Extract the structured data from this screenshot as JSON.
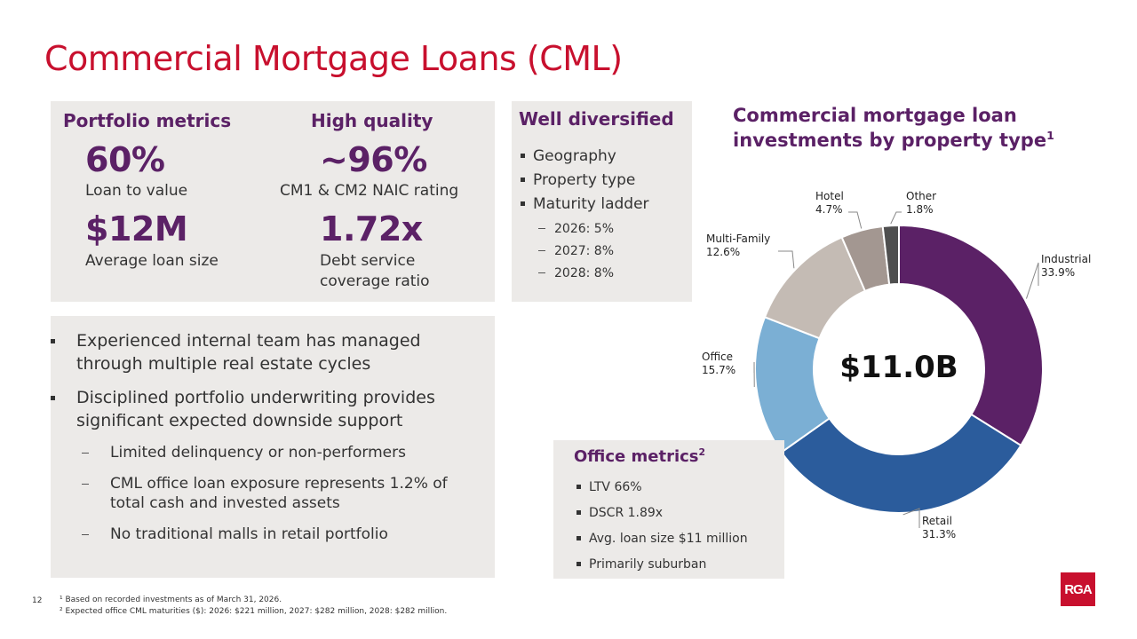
{
  "title": "Commercial Mortgage Loans (CML)",
  "portfolio": {
    "heading": "Portfolio metrics",
    "ltv_value": "60%",
    "ltv_label": "Loan to value",
    "size_value": "$12M",
    "size_label": "Average loan size"
  },
  "quality": {
    "heading": "High quality",
    "rating_value": "~96%",
    "rating_label": "CM1 & CM2 NAIC rating",
    "dscr_value": "1.72x",
    "dscr_label_1": "Debt service",
    "dscr_label_2": "coverage ratio"
  },
  "diversified": {
    "heading": "Well diversified",
    "items": [
      "Geography",
      "Property type",
      "Maturity ladder"
    ],
    "ladder": [
      "2026: 5%",
      "2027: 8%",
      "2028: 8%"
    ]
  },
  "bullets": [
    {
      "text": "Experienced internal team has managed through multiple real estate cycles"
    },
    {
      "text": "Disciplined portfolio underwriting provides significant expected downside support"
    }
  ],
  "sub_bullets": [
    {
      "text": "Limited delinquency or non-performers"
    },
    {
      "text": "CML office loan exposure represents 1.2% of total cash and invested assets"
    },
    {
      "text": "No traditional malls in retail portfolio"
    }
  ],
  "office": {
    "heading": "Office metrics",
    "heading_sup": "2",
    "items": [
      "LTV 66%",
      "DSCR 1.89x",
      "Avg. loan size $11 million",
      "Primarily suburban"
    ]
  },
  "chart_title": {
    "line1": "Commercial mortgage loan",
    "line2": "investments by property type",
    "sup": "1"
  },
  "chart_data": {
    "type": "pie",
    "donut": true,
    "center_label": "$11.0B",
    "slices": [
      {
        "label": "Industrial",
        "value": 33.9,
        "value_label": "33.9%",
        "color": "#5b2166"
      },
      {
        "label": "Retail",
        "value": 31.3,
        "value_label": "31.3%",
        "color": "#2b5c9c"
      },
      {
        "label": "Office",
        "value": 15.7,
        "value_label": "15.7%",
        "color": "#7bafd4"
      },
      {
        "label": "Multi-Family",
        "value": 12.6,
        "value_label": "12.6%",
        "color": "#c4bbb4"
      },
      {
        "label": "Hotel",
        "value": 4.7,
        "value_label": "4.7%",
        "color": "#a39791"
      },
      {
        "label": "Other",
        "value": 1.8,
        "value_label": "1.8%",
        "color": "#4f4f4f"
      }
    ]
  },
  "footer": {
    "page": "12",
    "note1": "¹ Based on recorded investments as of March 31, 2026.",
    "note2": "² Expected office CML maturities ($): 2026: $221 million, 2027: $282 million, 2028: $282 million."
  },
  "logo": "RGA"
}
